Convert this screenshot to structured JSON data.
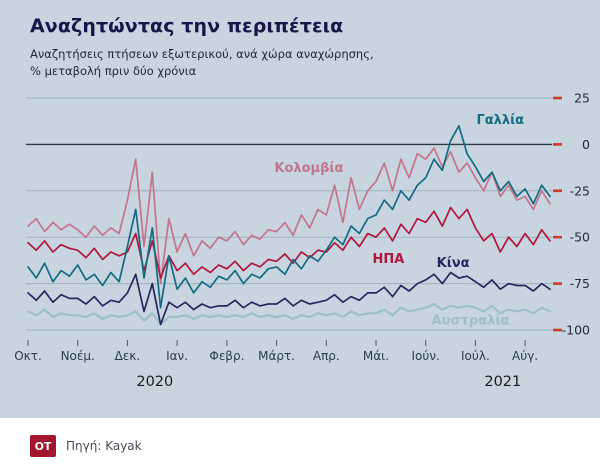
{
  "header": {
    "title": "Αναζητώντας την περιπέτεια",
    "subtitle_line1": "Αναζητήσεις πτήσεων εξωτερικού, ανά χώρα αναχώρησης,",
    "subtitle_line2": "% μεταβολή πριν δύο χρόνια"
  },
  "footer": {
    "logo": "OT",
    "source": "Πηγή: Kayak"
  },
  "colors": {
    "background": "#c8d5e0",
    "title": "#16164a",
    "zero_gridline": "#2e3a42",
    "gridline": "#9fb2bf",
    "right_tick_dash": "#cf3a2a",
    "logo_red": "#a3172e"
  },
  "chart_data": {
    "type": "line",
    "title": "Αναζητώντας την περιπέτεια",
    "subtitle": "Αναζητήσεις πτήσεων εξωτερικού, ανά χώρα αναχώρησης, % μεταβολή πριν δύο χρόνια",
    "grid": true,
    "ylim": [
      -100,
      25
    ],
    "yticks": [
      25,
      0,
      -25,
      -50,
      -75,
      -100
    ],
    "x_months_span": 10.5,
    "x_tick_labels": [
      "Οκτ.",
      "Νοέμ.",
      "Δεκ.",
      "Ιαν.",
      "Φεβρ.",
      "Μάρτ.",
      "Απρ.",
      "Μάι.",
      "Ιούν.",
      "Ιούλ.",
      "Αύγ."
    ],
    "year_labels": [
      {
        "label": "2020",
        "month": 2.55
      },
      {
        "label": "2021",
        "month": 9.55
      }
    ],
    "series": [
      {
        "name": "Κολομβία",
        "color": "#c4748b",
        "width": 1.7,
        "values": [
          -44,
          -40,
          -47,
          -42,
          -46,
          -43,
          -46,
          -50,
          -44,
          -49,
          -45,
          -48,
          -30,
          -8,
          -55,
          -15,
          -75,
          -40,
          -58,
          -48,
          -60,
          -52,
          -56,
          -50,
          -52,
          -47,
          -54,
          -49,
          -51,
          -46,
          -47,
          -42,
          -49,
          -38,
          -45,
          -35,
          -38,
          -22,
          -42,
          -18,
          -35,
          -25,
          -20,
          -10,
          -25,
          -8,
          -18,
          -5,
          -8,
          -2,
          -12,
          -4,
          -15,
          -10,
          -18,
          -25,
          -15,
          -28,
          -22,
          -30,
          -28,
          -35,
          -25,
          -32
        ]
      },
      {
        "name": "ΗΠΑ",
        "color": "#b0173a",
        "width": 1.7,
        "values": [
          -53,
          -57,
          -52,
          -58,
          -54,
          -56,
          -57,
          -61,
          -56,
          -62,
          -58,
          -60,
          -58,
          -48,
          -68,
          -52,
          -72,
          -60,
          -68,
          -64,
          -70,
          -66,
          -69,
          -65,
          -67,
          -63,
          -68,
          -64,
          -66,
          -62,
          -63,
          -59,
          -64,
          -58,
          -61,
          -57,
          -58,
          -53,
          -57,
          -50,
          -55,
          -48,
          -50,
          -45,
          -52,
          -43,
          -48,
          -40,
          -42,
          -36,
          -44,
          -34,
          -40,
          -35,
          -45,
          -52,
          -48,
          -58,
          -50,
          -55,
          -48,
          -54,
          -46,
          -52
        ]
      },
      {
        "name": "Αυστραλία",
        "color": "#9dbecb",
        "width": 2.2,
        "values": [
          -90,
          -92,
          -89,
          -93,
          -91,
          -92,
          -92,
          -93,
          -91,
          -94,
          -92,
          -93,
          -92,
          -90,
          -95,
          -91,
          -97,
          -93,
          -93,
          -92,
          -94,
          -92,
          -93,
          -92,
          -93,
          -92,
          -93,
          -91,
          -93,
          -92,
          -93,
          -92,
          -94,
          -92,
          -93,
          -91,
          -92,
          -91,
          -93,
          -90,
          -92,
          -91,
          -91,
          -89,
          -92,
          -88,
          -90,
          -89,
          -88,
          -86,
          -89,
          -87,
          -88,
          -87,
          -88,
          -90,
          -87,
          -91,
          -89,
          -90,
          -89,
          -91,
          -88,
          -90
        ]
      },
      {
        "name": "Κίνα",
        "color": "#27275f",
        "width": 1.7,
        "values": [
          -80,
          -84,
          -79,
          -85,
          -81,
          -83,
          -83,
          -86,
          -82,
          -87,
          -84,
          -85,
          -80,
          -70,
          -90,
          -75,
          -97,
          -85,
          -88,
          -85,
          -89,
          -86,
          -88,
          -87,
          -87,
          -84,
          -88,
          -85,
          -87,
          -86,
          -86,
          -83,
          -87,
          -84,
          -86,
          -85,
          -84,
          -81,
          -85,
          -82,
          -84,
          -80,
          -80,
          -77,
          -82,
          -76,
          -79,
          -75,
          -73,
          -70,
          -75,
          -69,
          -72,
          -71,
          -74,
          -77,
          -73,
          -78,
          -75,
          -76,
          -76,
          -79,
          -75,
          -78
        ]
      },
      {
        "name": "Γαλλία",
        "color": "#136c80",
        "width": 1.7,
        "values": [
          -66,
          -72,
          -64,
          -74,
          -68,
          -71,
          -65,
          -73,
          -70,
          -76,
          -69,
          -74,
          -55,
          -35,
          -72,
          -45,
          -88,
          -60,
          -78,
          -72,
          -80,
          -74,
          -77,
          -71,
          -73,
          -68,
          -75,
          -70,
          -72,
          -67,
          -66,
          -70,
          -62,
          -67,
          -60,
          -63,
          -57,
          -50,
          -54,
          -44,
          -48,
          -40,
          -38,
          -30,
          -35,
          -25,
          -30,
          -22,
          -18,
          -8,
          -14,
          2,
          10,
          -5,
          -12,
          -20,
          -15,
          -25,
          -20,
          -28,
          -24,
          -32,
          -22,
          -28
        ]
      }
    ],
    "annotations": [
      {
        "text": "Γαλλία",
        "color": "#136c80",
        "month": 9.5,
        "value": 11
      },
      {
        "text": "Κολομβία",
        "color": "#c4748b",
        "month": 5.65,
        "value": -15
      },
      {
        "text": "ΗΠΑ",
        "color": "#b0173a",
        "month": 7.25,
        "value": -64
      },
      {
        "text": "Κίνα",
        "color": "#27275f",
        "month": 8.55,
        "value": -66
      },
      {
        "text": "Αυστραλία",
        "color": "#9dbecb",
        "month": 8.9,
        "value": -97
      }
    ]
  }
}
